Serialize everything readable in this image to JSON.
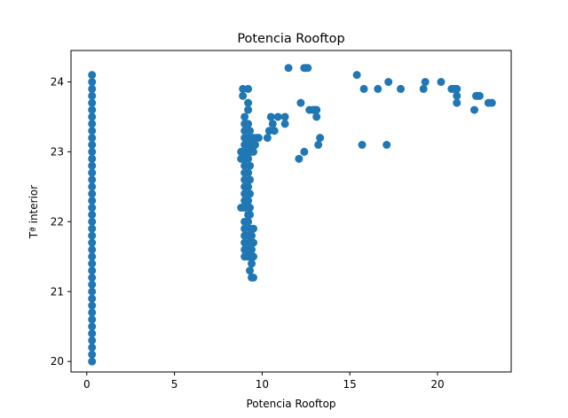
{
  "chart_data": {
    "type": "scatter",
    "title": "Potencia Rooftop",
    "xlabel": "Potencia Rooftop",
    "ylabel": "Tª interior",
    "xlim": [
      -0.9,
      24.2
    ],
    "ylim": [
      19.85,
      24.45
    ],
    "xticks": [
      0,
      5,
      10,
      15,
      20
    ],
    "yticks": [
      20,
      21,
      22,
      23,
      24
    ],
    "grid": false,
    "marker_color": "#1f77b4",
    "series": [
      {
        "points": [
          [
            0.3,
            20.0
          ],
          [
            0.3,
            20.1
          ],
          [
            0.3,
            20.2
          ],
          [
            0.3,
            20.3
          ],
          [
            0.3,
            20.4
          ],
          [
            0.3,
            20.5
          ],
          [
            0.3,
            20.6
          ],
          [
            0.3,
            20.7
          ],
          [
            0.3,
            20.8
          ],
          [
            0.3,
            20.9
          ],
          [
            0.3,
            21.0
          ],
          [
            0.3,
            21.1
          ],
          [
            0.3,
            21.2
          ],
          [
            0.3,
            21.3
          ],
          [
            0.3,
            21.4
          ],
          [
            0.3,
            21.5
          ],
          [
            0.3,
            21.6
          ],
          [
            0.3,
            21.7
          ],
          [
            0.3,
            21.8
          ],
          [
            0.3,
            21.9
          ],
          [
            0.3,
            22.0
          ],
          [
            0.3,
            22.1
          ],
          [
            0.3,
            22.2
          ],
          [
            0.3,
            22.3
          ],
          [
            0.3,
            22.4
          ],
          [
            0.3,
            22.5
          ],
          [
            0.3,
            22.6
          ],
          [
            0.3,
            22.7
          ],
          [
            0.3,
            22.8
          ],
          [
            0.3,
            22.9
          ],
          [
            0.3,
            23.0
          ],
          [
            0.3,
            23.1
          ],
          [
            0.3,
            23.2
          ],
          [
            0.3,
            23.3
          ],
          [
            0.3,
            23.4
          ],
          [
            0.3,
            23.5
          ],
          [
            0.3,
            23.6
          ],
          [
            0.3,
            23.7
          ],
          [
            0.3,
            23.8
          ],
          [
            0.3,
            23.9
          ],
          [
            0.3,
            24.0
          ],
          [
            0.3,
            24.1
          ],
          [
            9.0,
            21.5
          ],
          [
            9.0,
            21.6
          ],
          [
            9.0,
            21.7
          ],
          [
            9.0,
            21.8
          ],
          [
            9.0,
            21.9
          ],
          [
            9.0,
            22.0
          ],
          [
            9.0,
            22.2
          ],
          [
            9.0,
            22.3
          ],
          [
            9.0,
            22.4
          ],
          [
            9.0,
            22.5
          ],
          [
            9.0,
            22.6
          ],
          [
            9.0,
            22.7
          ],
          [
            9.0,
            22.8
          ],
          [
            9.0,
            22.9
          ],
          [
            9.0,
            23.0
          ],
          [
            9.0,
            23.1
          ],
          [
            9.0,
            23.2
          ],
          [
            9.0,
            23.3
          ],
          [
            9.0,
            23.4
          ],
          [
            9.0,
            23.5
          ],
          [
            8.9,
            23.8
          ],
          [
            8.9,
            23.9
          ],
          [
            8.8,
            22.2
          ],
          [
            8.8,
            22.9
          ],
          [
            8.8,
            23.0
          ],
          [
            9.2,
            21.5
          ],
          [
            9.2,
            21.6
          ],
          [
            9.2,
            21.8
          ],
          [
            9.2,
            22.0
          ],
          [
            9.2,
            22.1
          ],
          [
            9.2,
            22.3
          ],
          [
            9.2,
            22.5
          ],
          [
            9.2,
            22.7
          ],
          [
            9.2,
            22.9
          ],
          [
            9.2,
            23.0
          ],
          [
            9.2,
            23.2
          ],
          [
            9.2,
            23.4
          ],
          [
            9.2,
            23.6
          ],
          [
            9.2,
            23.9
          ],
          [
            9.2,
            23.7
          ],
          [
            9.3,
            21.3
          ],
          [
            9.3,
            21.5
          ],
          [
            9.3,
            21.7
          ],
          [
            9.3,
            21.9
          ],
          [
            9.3,
            22.1
          ],
          [
            9.3,
            22.2
          ],
          [
            9.3,
            22.4
          ],
          [
            9.3,
            22.6
          ],
          [
            9.3,
            22.8
          ],
          [
            9.3,
            23.0
          ],
          [
            9.3,
            23.1
          ],
          [
            9.3,
            23.3
          ],
          [
            9.4,
            21.2
          ],
          [
            9.4,
            21.4
          ],
          [
            9.4,
            21.6
          ],
          [
            9.4,
            21.8
          ],
          [
            9.4,
            23.0
          ],
          [
            9.4,
            23.1
          ],
          [
            9.5,
            21.2
          ],
          [
            9.5,
            21.5
          ],
          [
            9.5,
            21.7
          ],
          [
            9.5,
            21.9
          ],
          [
            9.5,
            23.0
          ],
          [
            9.5,
            23.2
          ],
          [
            9.6,
            23.1
          ],
          [
            9.7,
            23.2
          ],
          [
            9.8,
            23.2
          ],
          [
            10.3,
            23.2
          ],
          [
            10.4,
            23.3
          ],
          [
            10.5,
            23.5
          ],
          [
            10.6,
            23.4
          ],
          [
            10.7,
            23.3
          ],
          [
            10.9,
            23.5
          ],
          [
            11.3,
            23.5
          ],
          [
            11.3,
            23.4
          ],
          [
            11.5,
            24.2
          ],
          [
            12.1,
            22.9
          ],
          [
            12.2,
            23.7
          ],
          [
            12.4,
            23.0
          ],
          [
            12.4,
            24.2
          ],
          [
            12.5,
            24.2
          ],
          [
            12.6,
            24.2
          ],
          [
            12.7,
            23.6
          ],
          [
            12.9,
            23.6
          ],
          [
            13.0,
            23.6
          ],
          [
            13.1,
            23.6
          ],
          [
            13.1,
            23.5
          ],
          [
            13.2,
            23.1
          ],
          [
            13.3,
            23.2
          ],
          [
            15.4,
            24.1
          ],
          [
            15.7,
            23.1
          ],
          [
            15.8,
            23.9
          ],
          [
            16.6,
            23.9
          ],
          [
            17.1,
            23.1
          ],
          [
            17.2,
            24.0
          ],
          [
            17.9,
            23.9
          ],
          [
            19.2,
            23.9
          ],
          [
            19.3,
            24.0
          ],
          [
            20.2,
            24.0
          ],
          [
            20.8,
            23.9
          ],
          [
            20.9,
            23.9
          ],
          [
            21.0,
            23.9
          ],
          [
            21.1,
            23.9
          ],
          [
            21.1,
            23.7
          ],
          [
            21.1,
            23.8
          ],
          [
            22.1,
            23.6
          ],
          [
            22.2,
            23.8
          ],
          [
            22.3,
            23.8
          ],
          [
            22.4,
            23.8
          ],
          [
            22.9,
            23.7
          ],
          [
            23.1,
            23.7
          ]
        ]
      }
    ]
  }
}
